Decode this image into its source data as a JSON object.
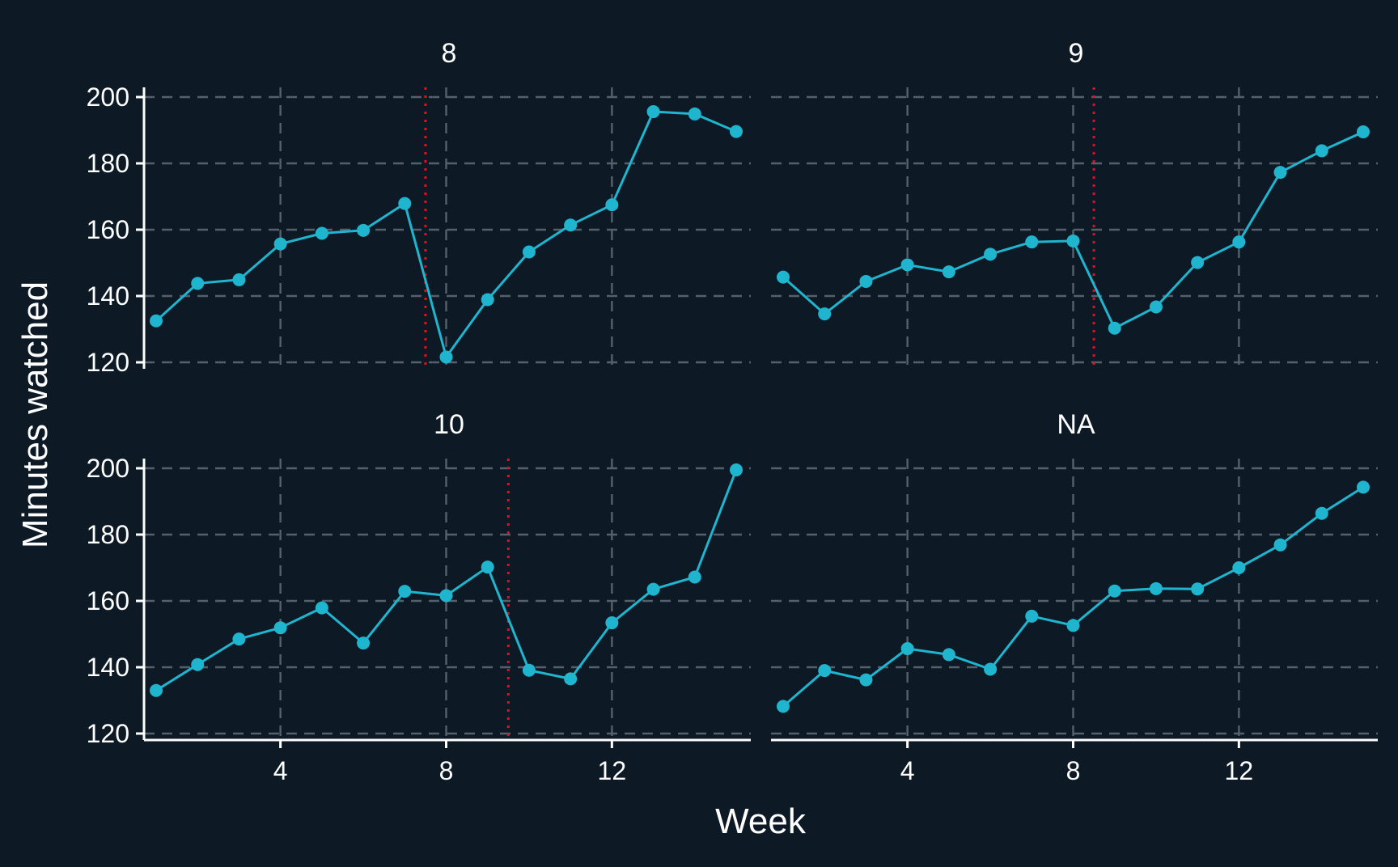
{
  "colors": {
    "background": "#0d1a26",
    "line": "#1fb5cf",
    "grid": "#56606a",
    "axis": "#ffffff",
    "text": "#ffffff",
    "cutoff": "#e0101e"
  },
  "chart_data": {
    "type": "line",
    "layout": "facet-grid",
    "xlabel": "Week",
    "ylabel": "Minutes watched",
    "xlim": [
      1,
      15
    ],
    "ylim": [
      120,
      200
    ],
    "xticks": [
      4,
      8,
      12
    ],
    "yticks": [
      120,
      140,
      160,
      180,
      200
    ],
    "grid": true,
    "panels": [
      {
        "title": "8",
        "cutoff": 7.5,
        "x": [
          1,
          2,
          3,
          4,
          5,
          6,
          7,
          8,
          9,
          10,
          11,
          12,
          13,
          14,
          15
        ],
        "y": [
          132.5,
          143.8,
          144.9,
          155.7,
          158.9,
          159.8,
          167.9,
          121.6,
          138.9,
          153.3,
          161.4,
          167.5,
          195.6,
          194.9,
          189.6
        ]
      },
      {
        "title": "9",
        "cutoff": 8.5,
        "x": [
          1,
          2,
          3,
          4,
          5,
          6,
          7,
          8,
          9,
          10,
          11,
          12,
          13,
          14,
          15
        ],
        "y": [
          145.7,
          134.6,
          144.4,
          149.4,
          147.3,
          152.6,
          156.3,
          156.6,
          130.3,
          136.7,
          150.1,
          156.3,
          177.3,
          183.8,
          189.5
        ]
      },
      {
        "title": "10",
        "cutoff": 9.5,
        "x": [
          1,
          2,
          3,
          4,
          5,
          6,
          7,
          8,
          9,
          10,
          11,
          12,
          13,
          14,
          15
        ],
        "y": [
          133.0,
          140.8,
          148.5,
          151.9,
          157.9,
          147.3,
          162.9,
          161.6,
          170.2,
          139.1,
          136.5,
          153.4,
          163.5,
          167.2,
          199.5
        ]
      },
      {
        "title": "NA",
        "cutoff": null,
        "x": [
          1,
          2,
          3,
          4,
          5,
          6,
          7,
          8,
          9,
          10,
          11,
          12,
          13,
          14,
          15
        ],
        "y": [
          128.2,
          139.0,
          136.2,
          145.6,
          143.8,
          139.4,
          155.4,
          152.6,
          163.0,
          163.7,
          163.6,
          170.0,
          176.9,
          186.4,
          194.3
        ]
      }
    ]
  }
}
